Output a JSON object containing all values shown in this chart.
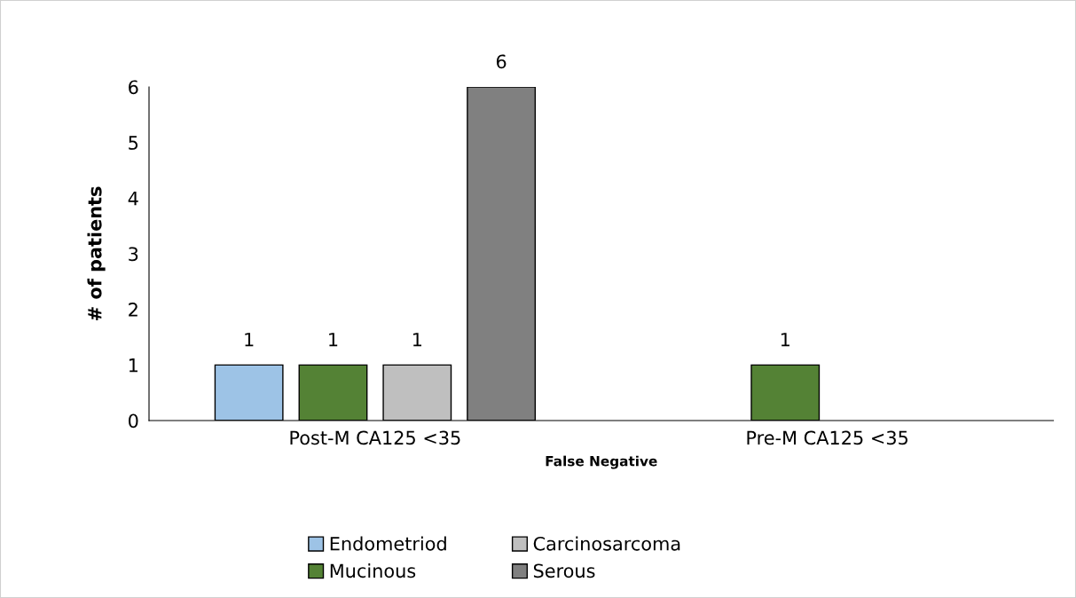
{
  "chart_data": {
    "type": "bar",
    "xlabel": "False Negative",
    "ylabel": "# of patients",
    "categories": [
      "Post-M CA125 <35",
      "Pre-M CA125 <35"
    ],
    "series": [
      {
        "name": "Endometriod",
        "color": "#9dc3e6",
        "values": [
          1,
          null
        ]
      },
      {
        "name": "Mucinous",
        "color": "#548235",
        "values": [
          1,
          1
        ]
      },
      {
        "name": "Carcinosarcoma",
        "color": "#bfbfbf",
        "values": [
          1,
          null
        ]
      },
      {
        "name": "Serous",
        "color": "#808080",
        "values": [
          6,
          null
        ]
      }
    ],
    "ylim": [
      0,
      6
    ],
    "yticks": [
      0,
      1,
      2,
      3,
      4,
      5,
      6
    ],
    "data_labels": true,
    "legend": "bottom",
    "grid": false
  }
}
